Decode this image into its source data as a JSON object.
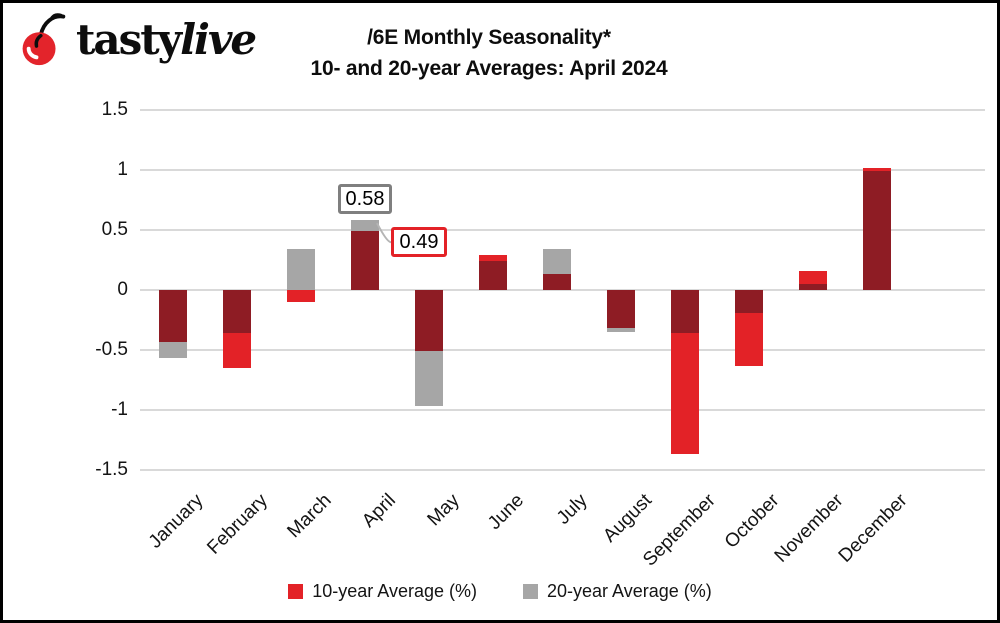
{
  "logo": {
    "brand_bold": "tasty",
    "brand_italic": "live"
  },
  "title": {
    "line1": "/6E Monthly Seasonality*",
    "line2": "10- and 20-year Averages: April 2024"
  },
  "chart_data": {
    "type": "bar",
    "title": "/6E Monthly Seasonality* 10- and 20-year Averages: April 2024",
    "categories": [
      "January",
      "February",
      "March",
      "April",
      "May",
      "June",
      "July",
      "August",
      "September",
      "October",
      "November",
      "December"
    ],
    "series": [
      {
        "name": "10-year Average (%)",
        "color": "#E32227",
        "values": [
          -0.43,
          -0.65,
          -0.1,
          0.49,
          -0.51,
          0.29,
          0.13,
          -0.32,
          -1.37,
          -0.63,
          0.16,
          1.02
        ]
      },
      {
        "name": "20-year Average (%)",
        "color": "#A6A6A6",
        "values": [
          -0.57,
          -0.36,
          0.34,
          0.58,
          -0.97,
          0.24,
          0.34,
          -0.35,
          -0.36,
          -0.19,
          0.05,
          0.99
        ]
      }
    ],
    "overlap_color": "#8E1C24",
    "ylim": [
      -1.5,
      1.5
    ],
    "yticks": [
      1.5,
      1,
      0.5,
      0,
      -0.5,
      -1,
      -1.5
    ],
    "grid": true,
    "gridline_color": "#d9d9d9",
    "legend_position": "bottom",
    "annotations": [
      {
        "label": "0.58",
        "month_index": 3,
        "series_index": 1,
        "border_color": "#7f7f7f",
        "placement": "above"
      },
      {
        "label": "0.49",
        "month_index": 3,
        "series_index": 0,
        "border_color": "#E32227",
        "placement": "right"
      }
    ]
  },
  "legend": {
    "items": [
      {
        "label": "10-year Average (%)",
        "color": "#E32227"
      },
      {
        "label": "20-year Average (%)",
        "color": "#A6A6A6"
      }
    ]
  }
}
